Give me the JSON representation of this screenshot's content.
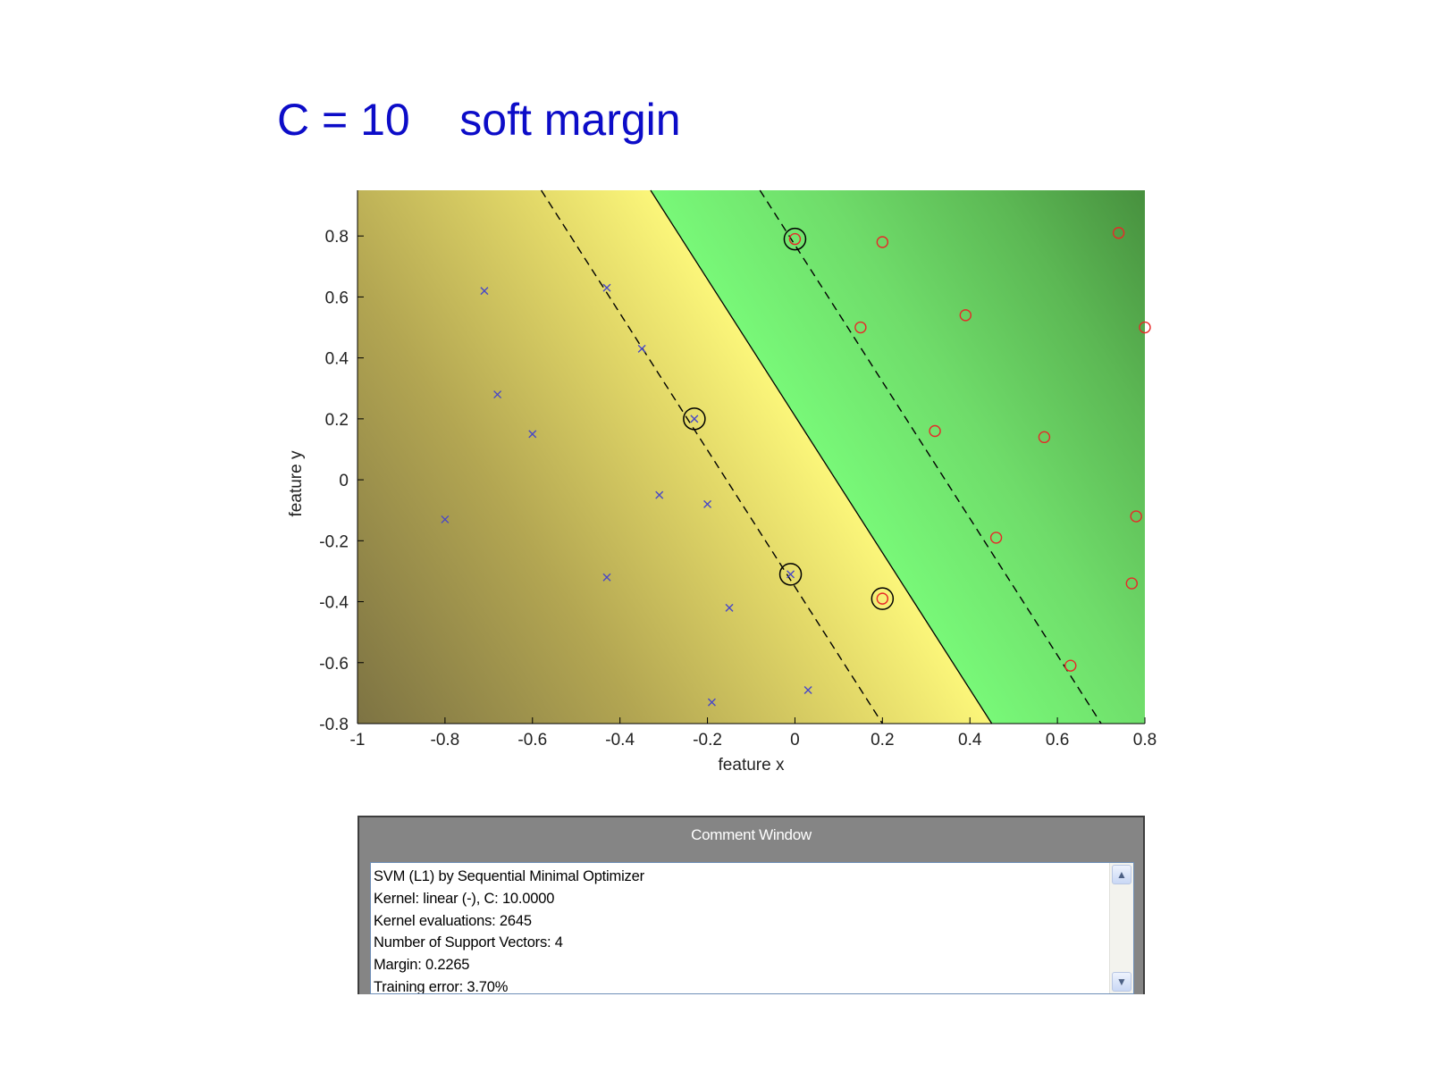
{
  "slide": {
    "title": "C = 10    soft margin"
  },
  "chart_data": {
    "type": "scatter",
    "title": "",
    "xlabel": "feature x",
    "ylabel": "feature y",
    "xlim": [
      -1,
      0.8
    ],
    "ylim": [
      -0.8,
      0.95
    ],
    "xticks": [
      -1,
      -0.8,
      -0.6,
      -0.4,
      -0.2,
      0,
      0.2,
      0.4,
      0.6,
      0.8
    ],
    "xtick_labels": [
      "-1",
      "-0.8",
      "-0.6",
      "-0.4",
      "-0.2",
      "0",
      "0.2",
      "0.4",
      "0.6",
      "0.8"
    ],
    "yticks": [
      -0.8,
      -0.6,
      -0.4,
      -0.2,
      0,
      0.2,
      0.4,
      0.6,
      0.8
    ],
    "ytick_labels": [
      "-0.8",
      "-0.6",
      "-0.4",
      "-0.2",
      "0",
      "0.2",
      "0.4",
      "0.6",
      "0.8"
    ],
    "background": "decision function shading: dark olive (negative) to yellow at boundary, bright green to dark green (positive)",
    "decision_boundary": {
      "points": [
        [
          -0.33,
          0.95
        ],
        [
          0.45,
          -0.8
        ]
      ],
      "style": "solid",
      "color": "#000000"
    },
    "margins": [
      {
        "points": [
          [
            -0.58,
            0.95
          ],
          [
            0.2,
            -0.8
          ]
        ],
        "style": "dashed",
        "color": "#000000"
      },
      {
        "points": [
          [
            -0.08,
            0.95
          ],
          [
            0.7,
            -0.8
          ]
        ],
        "style": "dashed",
        "color": "#000000"
      }
    ],
    "series": [
      {
        "marker": "x",
        "color": "#4848c8",
        "points": [
          [
            -0.71,
            0.62
          ],
          [
            -0.43,
            0.63
          ],
          [
            -0.35,
            0.43
          ],
          [
            -0.68,
            0.28
          ],
          [
            -0.6,
            0.15
          ],
          [
            -0.23,
            0.2
          ],
          [
            -0.8,
            -0.13
          ],
          [
            -0.31,
            -0.05
          ],
          [
            -0.2,
            -0.08
          ],
          [
            -0.43,
            -0.32
          ],
          [
            -0.15,
            -0.42
          ],
          [
            -0.01,
            -0.31
          ],
          [
            -0.19,
            -0.73
          ],
          [
            0.03,
            -0.69
          ]
        ]
      },
      {
        "marker": "o",
        "color": "#e82828",
        "points": [
          [
            0.0,
            0.79
          ],
          [
            0.2,
            0.78
          ],
          [
            0.74,
            0.81
          ],
          [
            0.15,
            0.5
          ],
          [
            0.39,
            0.54
          ],
          [
            0.8,
            0.5
          ],
          [
            0.32,
            0.16
          ],
          [
            0.57,
            0.14
          ],
          [
            0.78,
            -0.12
          ],
          [
            0.46,
            -0.19
          ],
          [
            0.77,
            -0.34
          ],
          [
            0.2,
            -0.39
          ],
          [
            0.63,
            -0.61
          ]
        ]
      }
    ],
    "support_vectors": [
      [
        0.0,
        0.79
      ],
      [
        -0.23,
        0.2
      ],
      [
        -0.01,
        -0.31
      ],
      [
        0.2,
        -0.39
      ]
    ]
  },
  "comment_window": {
    "title": "Comment Window",
    "lines": [
      "SVM (L1) by Sequential Minimal Optimizer",
      "Kernel: linear (-), C: 10.0000",
      "Kernel evaluations: 2645",
      "Number of Support Vectors: 4",
      "Margin: 0.2265",
      "Training error: 3.70%"
    ],
    "scroll_up_icon": "chevron-up-icon",
    "scroll_down_icon": "chevron-down-icon"
  }
}
